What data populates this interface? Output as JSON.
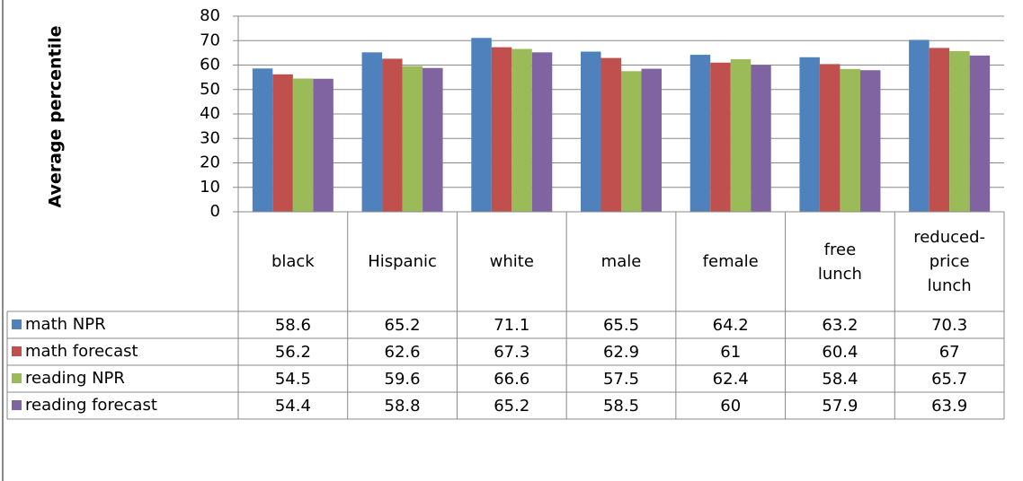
{
  "chart_data": {
    "type": "bar",
    "y_label": "Average percentile",
    "categories": [
      "black",
      "Hispanic",
      "white",
      "male",
      "female",
      "free lunch",
      "reduced-price lunch"
    ],
    "series": [
      {
        "name": "math NPR",
        "color": "#4f81bd",
        "values": [
          58.6,
          65.2,
          71.1,
          65.5,
          64.2,
          63.2,
          70.3
        ]
      },
      {
        "name": "math forecast",
        "color": "#c0504d",
        "values": [
          56.2,
          62.6,
          67.3,
          62.9,
          61,
          60.4,
          67
        ]
      },
      {
        "name": "reading NPR",
        "color": "#9bbb59",
        "values": [
          54.5,
          59.6,
          66.6,
          57.5,
          62.4,
          58.4,
          65.7
        ]
      },
      {
        "name": "reading forecast",
        "color": "#8064a2",
        "values": [
          54.4,
          58.8,
          65.2,
          58.5,
          60,
          57.9,
          63.9
        ]
      }
    ],
    "ylim": [
      0,
      80
    ],
    "yticks": [
      0,
      10,
      20,
      30,
      40,
      50,
      60,
      70,
      80
    ],
    "grid": true
  }
}
